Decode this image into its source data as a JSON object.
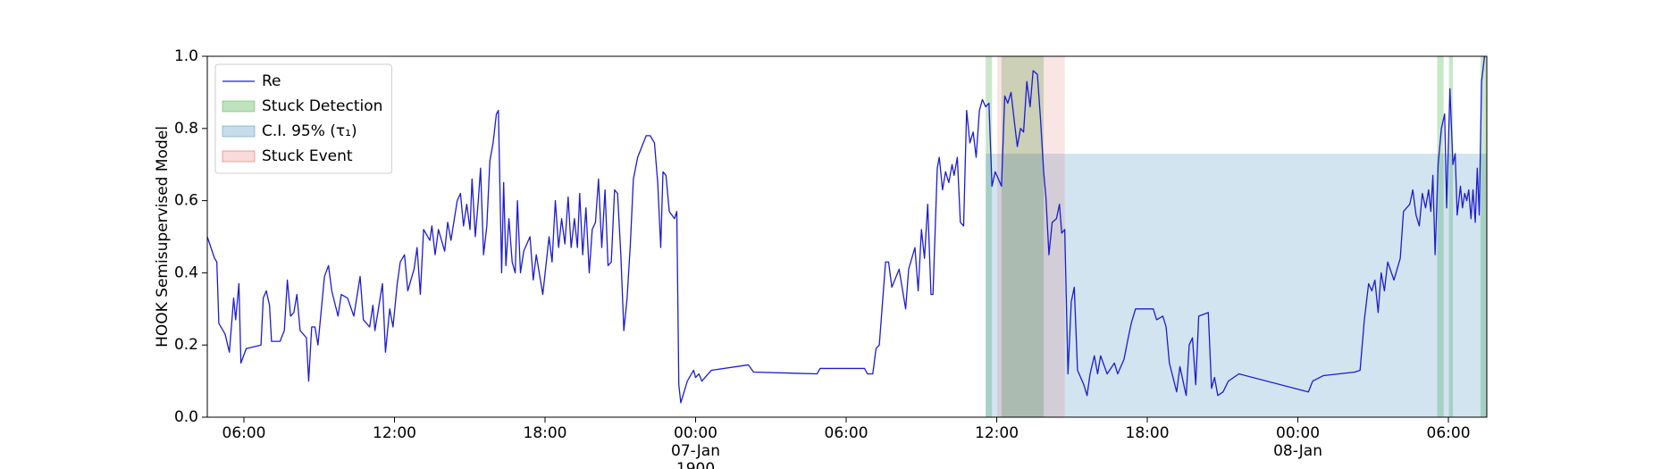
{
  "chart_data": {
    "type": "line",
    "ylabel": "HOOK Semisupervised Model",
    "xlim": [
      4.54,
      55.53
    ],
    "ylim": [
      0,
      1
    ],
    "yticks": [
      {
        "value": 0,
        "label": "0.0"
      },
      0.2,
      0.4,
      0.6,
      0.8,
      {
        "value": 1,
        "label": "1.0"
      }
    ],
    "xticks": [
      {
        "value": 6,
        "label": [
          "06:00"
        ]
      },
      {
        "value": 12,
        "label": [
          "12:00"
        ]
      },
      {
        "value": 18,
        "label": [
          "18:00"
        ]
      },
      {
        "value": 24,
        "label": [
          "00:00",
          "07-Jan",
          "1900"
        ]
      },
      {
        "value": 30,
        "label": [
          "06:00"
        ]
      },
      {
        "value": 36,
        "label": [
          "12:00"
        ]
      },
      {
        "value": 42,
        "label": [
          "18:00"
        ]
      },
      {
        "value": 48,
        "label": [
          "00:00",
          "08-Jan"
        ]
      },
      {
        "value": 54,
        "label": [
          "06:00"
        ]
      }
    ],
    "grid": false,
    "legend": "upper left",
    "series": [
      {
        "name": "Re",
        "color": "#1c1cd0",
        "x": [
          4.54,
          4.83,
          4.92,
          5.0,
          5.25,
          5.42,
          5.59,
          5.67,
          5.8,
          5.88,
          6.09,
          6.68,
          6.77,
          6.89,
          7.02,
          7.1,
          7.44,
          7.61,
          7.73,
          7.86,
          7.99,
          8.11,
          8.24,
          8.49,
          8.58,
          8.7,
          8.83,
          8.95,
          9.21,
          9.37,
          9.5,
          9.75,
          9.88,
          10.13,
          10.38,
          10.63,
          10.76,
          11.01,
          11.14,
          11.22,
          11.52,
          11.64,
          11.81,
          11.94,
          12.11,
          12.23,
          12.4,
          12.53,
          12.78,
          12.9,
          13.03,
          13.16,
          13.41,
          13.49,
          13.62,
          13.75,
          14.0,
          14.12,
          14.25,
          14.5,
          14.63,
          14.75,
          14.88,
          15.01,
          15.09,
          15.22,
          15.34,
          15.43,
          15.55,
          15.68,
          15.8,
          15.93,
          16.06,
          16.14,
          16.27,
          16.35,
          16.44,
          16.56,
          16.69,
          16.81,
          16.9,
          17.02,
          17.15,
          17.4,
          17.53,
          17.65,
          17.91,
          18.16,
          18.28,
          18.41,
          18.54,
          18.66,
          18.79,
          18.92,
          19.04,
          19.17,
          19.29,
          19.38,
          19.5,
          19.63,
          19.76,
          19.88,
          20.01,
          20.13,
          20.26,
          20.39,
          20.51,
          20.64,
          20.77,
          20.89,
          21.02,
          21.14,
          21.27,
          21.4,
          21.52,
          21.69,
          21.86,
          22.03,
          22.19,
          22.36,
          22.49,
          22.61,
          22.7,
          22.82,
          22.95,
          23.16,
          23.25,
          23.33,
          23.41,
          23.54,
          23.67,
          23.92,
          24.0,
          24.13,
          24.25,
          24.63,
          26.1,
          26.31,
          28.84,
          28.96,
          30.73,
          30.85,
          31.06,
          31.19,
          31.32,
          31.44,
          31.57,
          31.69,
          31.82,
          32.11,
          32.37,
          32.49,
          32.74,
          32.87,
          33.0,
          33.12,
          33.25,
          33.38,
          33.46,
          33.63,
          33.71,
          33.84,
          33.96,
          34.09,
          34.22,
          34.3,
          34.43,
          34.55,
          34.68,
          34.8,
          34.93,
          35.06,
          35.18,
          35.31,
          35.43,
          35.56,
          35.69,
          35.81,
          35.94,
          36.19,
          36.32,
          36.44,
          36.57,
          36.7,
          36.82,
          36.95,
          37.07,
          37.2,
          37.33,
          37.45,
          37.62,
          37.75,
          37.87,
          37.96,
          38.08,
          38.21,
          38.38,
          38.5,
          38.59,
          38.71,
          38.84,
          38.97,
          39.09,
          39.22,
          39.47,
          39.6,
          39.72,
          39.89,
          40.02,
          40.14,
          40.4,
          40.69,
          40.82,
          41.07,
          41.24,
          41.36,
          41.53,
          42.24,
          42.37,
          42.62,
          42.75,
          42.88,
          43.17,
          43.3,
          43.55,
          43.67,
          43.8,
          43.93,
          44.05,
          44.43,
          44.56,
          44.68,
          44.81,
          45.02,
          45.23,
          45.65,
          48.42,
          48.59,
          49.01,
          50.27,
          50.48,
          50.65,
          50.82,
          50.95,
          51.07,
          51.2,
          51.32,
          51.45,
          51.58,
          51.83,
          52.08,
          52.21,
          52.46,
          52.58,
          52.71,
          52.84,
          52.96,
          53.09,
          53.21,
          53.3,
          53.38,
          53.47,
          53.59,
          53.72,
          53.85,
          53.93,
          54.06,
          54.18,
          54.27,
          54.35,
          54.48,
          54.56,
          54.65,
          54.73,
          54.81,
          54.9,
          54.98,
          55.07,
          55.15,
          55.23,
          55.32,
          55.44
        ],
        "values": [
          0.5,
          0.44,
          0.43,
          0.26,
          0.23,
          0.18,
          0.33,
          0.27,
          0.37,
          0.15,
          0.19,
          0.2,
          0.33,
          0.35,
          0.31,
          0.21,
          0.21,
          0.24,
          0.38,
          0.28,
          0.29,
          0.34,
          0.24,
          0.22,
          0.1,
          0.25,
          0.25,
          0.2,
          0.39,
          0.42,
          0.35,
          0.28,
          0.34,
          0.33,
          0.28,
          0.39,
          0.27,
          0.25,
          0.31,
          0.24,
          0.37,
          0.18,
          0.3,
          0.25,
          0.37,
          0.43,
          0.45,
          0.35,
          0.41,
          0.47,
          0.34,
          0.52,
          0.49,
          0.53,
          0.45,
          0.52,
          0.46,
          0.54,
          0.49,
          0.6,
          0.62,
          0.53,
          0.59,
          0.52,
          0.66,
          0.5,
          0.6,
          0.69,
          0.45,
          0.53,
          0.71,
          0.76,
          0.84,
          0.85,
          0.4,
          0.65,
          0.42,
          0.55,
          0.43,
          0.4,
          0.6,
          0.4,
          0.46,
          0.5,
          0.38,
          0.45,
          0.34,
          0.5,
          0.43,
          0.6,
          0.47,
          0.55,
          0.48,
          0.61,
          0.47,
          0.55,
          0.47,
          0.62,
          0.45,
          0.58,
          0.4,
          0.52,
          0.54,
          0.66,
          0.47,
          0.63,
          0.42,
          0.43,
          0.63,
          0.62,
          0.45,
          0.24,
          0.33,
          0.48,
          0.66,
          0.72,
          0.75,
          0.78,
          0.78,
          0.76,
          0.65,
          0.47,
          0.68,
          0.67,
          0.57,
          0.55,
          0.57,
          0.09,
          0.04,
          0.07,
          0.1,
          0.13,
          0.11,
          0.12,
          0.1,
          0.13,
          0.145,
          0.125,
          0.12,
          0.135,
          0.135,
          0.12,
          0.12,
          0.19,
          0.2,
          0.31,
          0.43,
          0.43,
          0.36,
          0.41,
          0.3,
          0.41,
          0.47,
          0.35,
          0.52,
          0.44,
          0.59,
          0.34,
          0.34,
          0.69,
          0.72,
          0.63,
          0.68,
          0.65,
          0.7,
          0.67,
          0.72,
          0.54,
          0.53,
          0.85,
          0.76,
          0.79,
          0.72,
          0.85,
          0.88,
          0.86,
          0.87,
          0.64,
          0.68,
          0.64,
          0.89,
          0.87,
          0.9,
          0.82,
          0.75,
          0.8,
          0.79,
          0.93,
          0.86,
          0.96,
          0.95,
          0.82,
          0.68,
          0.61,
          0.45,
          0.54,
          0.55,
          0.59,
          0.51,
          0.52,
          0.12,
          0.32,
          0.36,
          0.13,
          0.09,
          0.06,
          0.12,
          0.17,
          0.12,
          0.17,
          0.12,
          0.15,
          0.12,
          0.16,
          0.22,
          0.26,
          0.3,
          0.3,
          0.27,
          0.28,
          0.25,
          0.15,
          0.07,
          0.14,
          0.06,
          0.2,
          0.22,
          0.09,
          0.28,
          0.29,
          0.08,
          0.11,
          0.06,
          0.07,
          0.1,
          0.12,
          0.07,
          0.1,
          0.115,
          0.125,
          0.13,
          0.27,
          0.37,
          0.35,
          0.38,
          0.29,
          0.4,
          0.35,
          0.43,
          0.38,
          0.44,
          0.57,
          0.59,
          0.63,
          0.56,
          0.53,
          0.62,
          0.58,
          0.63,
          0.57,
          0.67,
          0.45,
          0.7,
          0.8,
          0.84,
          0.58,
          0.91,
          0.7,
          0.73,
          0.56,
          0.64,
          0.58,
          0.62,
          0.6,
          0.63,
          0.55,
          0.63,
          0.54,
          0.69,
          0.56,
          0.93,
          1.0
        ]
      }
    ],
    "regions": [
      {
        "name": "Stuck Detection",
        "color": "#2ca02c",
        "opacity": 0.25,
        "spans": [
          [
            35.56,
            35.81
          ],
          [
            36.19,
            37.87
          ],
          [
            53.55,
            53.81
          ],
          [
            54.02,
            54.18
          ],
          [
            55.28,
            55.53
          ]
        ]
      },
      {
        "name": "C.I. 95% (τ₁)",
        "color": "#1f77b4",
        "opacity": 0.2,
        "spans": [
          [
            35.56,
            55.53
          ]
        ],
        "y": [
          0,
          0.73
        ]
      },
      {
        "name": "Stuck Event",
        "color": "#d62728",
        "opacity": 0.12,
        "spans": [
          [
            36.02,
            38.71
          ]
        ]
      }
    ]
  }
}
